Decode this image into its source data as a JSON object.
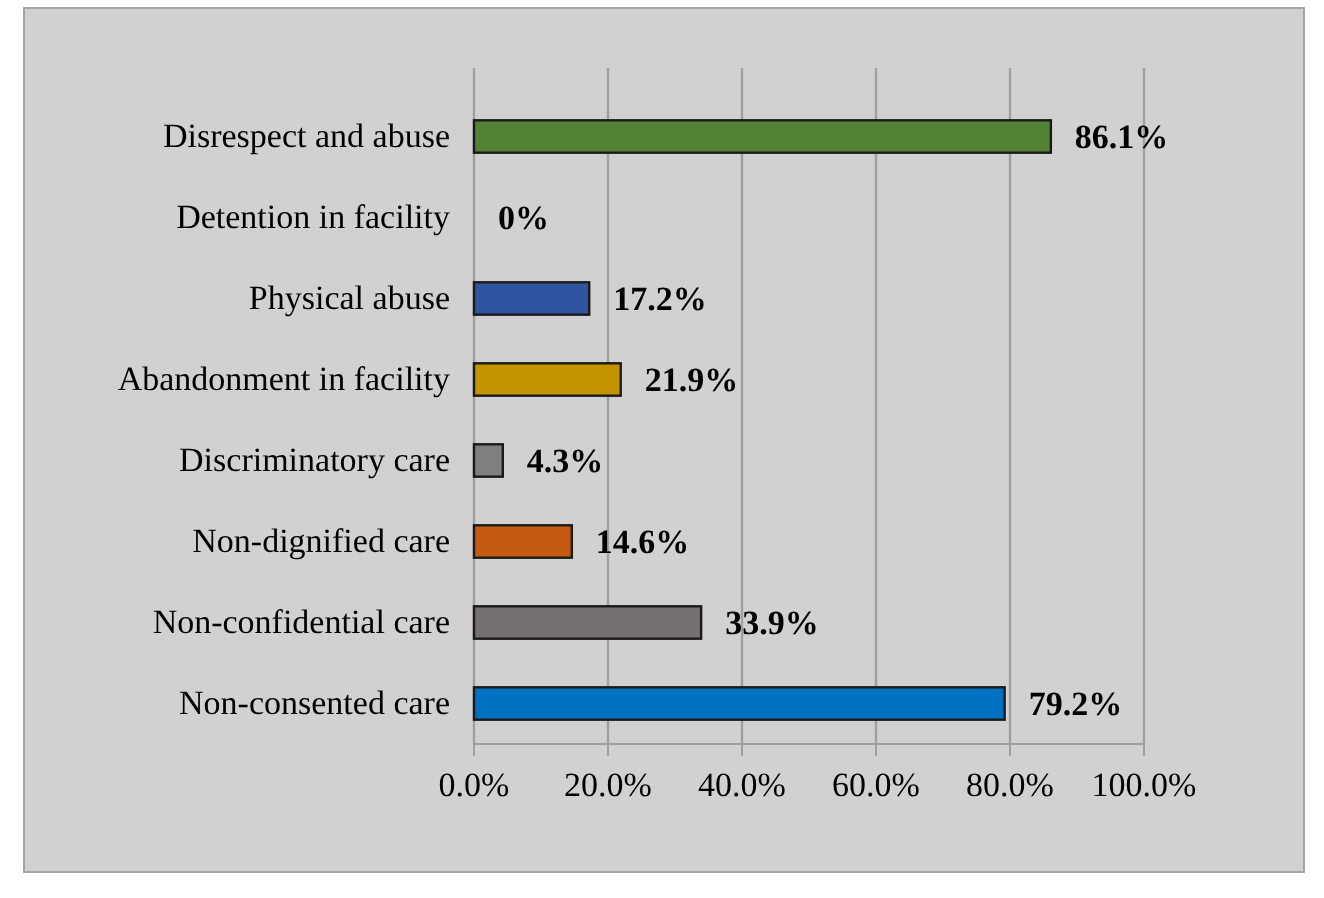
{
  "chart_data": {
    "type": "bar",
    "orientation": "horizontal",
    "categories": [
      "Disrespect and abuse",
      "Detention in facility",
      "Physical abuse",
      "Abandonment in facility",
      "Discriminatory care",
      "Non-dignified care",
      "Non-confidential care",
      "Non-consented care"
    ],
    "values": [
      86.1,
      0,
      17.2,
      21.9,
      4.3,
      14.6,
      33.9,
      79.2
    ],
    "value_labels": [
      "86.1%",
      "0%",
      "17.2%",
      "21.9%",
      "4.3%",
      "14.6%",
      "33.9%",
      "79.2%"
    ],
    "colors": [
      "#548235",
      "#2e75b6",
      "#2f55a0",
      "#c59300",
      "#7f7f7f",
      "#c55a11",
      "#767171",
      "#0070c0"
    ],
    "xlim": [
      0,
      100
    ],
    "xticks": [
      {
        "value": 0,
        "label": "0.0%"
      },
      {
        "value": 20,
        "label": "20.0%"
      },
      {
        "value": 40,
        "label": "40.0%"
      },
      {
        "value": 60,
        "label": "60.0%"
      },
      {
        "value": 80,
        "label": "80.0%"
      },
      {
        "value": 100,
        "label": "100.0%"
      }
    ],
    "grid": "x"
  }
}
